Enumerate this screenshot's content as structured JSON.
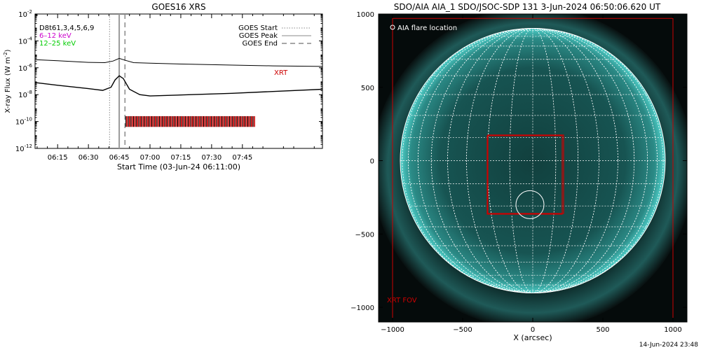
{
  "colors": {
    "black": "#000000",
    "xrt_red": "#cc0000",
    "magenta": "#cc00cc",
    "green": "#00cc00",
    "grey_line": "#9a9a9a",
    "disk_teal": "#1f5e5c",
    "corona_teal": "#3aa8a4"
  },
  "chart_data": [
    {
      "type": "line",
      "title": "GOES16 XRS",
      "xlabel": "Start Time (03-Jun-24 06:11:00)",
      "ylabel": "X-ray Flux (W m",
      "ylabel_sup": "-2",
      "ylabel_close": ")",
      "ylog": true,
      "ylim_exp": [
        -12,
        -2
      ],
      "xlim_min": [
        364,
        504
      ],
      "x_ticks": [
        {
          "label": "06:15",
          "m": 375
        },
        {
          "label": "06:30",
          "m": 390
        },
        {
          "label": "06:45",
          "m": 405
        },
        {
          "label": "07:00",
          "m": 420
        },
        {
          "label": "07:15",
          "m": 435
        },
        {
          "label": "07:30",
          "m": 450
        },
        {
          "label": "07:45",
          "m": 465
        }
      ],
      "y_ticks": [
        {
          "base": "10",
          "exp": "-2",
          "e": -2
        },
        {
          "base": "10",
          "exp": "-4",
          "e": -4
        },
        {
          "base": "10",
          "exp": "-6",
          "e": -6
        },
        {
          "base": "10",
          "exp": "-8",
          "e": -8
        },
        {
          "base": "10",
          "exp": "-10",
          "e": -10
        },
        {
          "base": "10",
          "exp": "-12",
          "e": -12
        }
      ],
      "legend_left": [
        "D8t61,3,4,5,6,9",
        "6–12 keV",
        "12–25 keV"
      ],
      "legend_right": [
        "GOES Start",
        "GOES Peak",
        "GOES End"
      ],
      "event_markers_min": {
        "start": 400.3,
        "peak": 405.0,
        "end": 407.8
      },
      "xrt_label": "XRT",
      "series": [
        {
          "color": "black",
          "points": [
            [
              364,
              -5.4
            ],
            [
              375,
              -5.48
            ],
            [
              390,
              -5.6
            ],
            [
              398,
              -5.62
            ],
            [
              402,
              -5.5
            ],
            [
              405,
              -5.3
            ],
            [
              408,
              -5.45
            ],
            [
              412,
              -5.62
            ],
            [
              420,
              -5.66
            ],
            [
              440,
              -5.74
            ],
            [
              460,
              -5.8
            ],
            [
              480,
              -5.86
            ],
            [
              504,
              -5.9
            ]
          ]
        },
        {
          "color": "black",
          "points": [
            [
              364,
              -7.1
            ],
            [
              375,
              -7.3
            ],
            [
              390,
              -7.55
            ],
            [
              397,
              -7.68
            ],
            [
              401,
              -7.45
            ],
            [
              403,
              -6.9
            ],
            [
              405,
              -6.6
            ],
            [
              407,
              -6.8
            ],
            [
              410,
              -7.6
            ],
            [
              415,
              -8.0
            ],
            [
              420,
              -8.1
            ],
            [
              440,
              -8.0
            ],
            [
              460,
              -7.9
            ],
            [
              504,
              -7.6
            ]
          ]
        }
      ],
      "xrt_obs_span_min": [
        408.2,
        471.0
      ]
    },
    {
      "type": "scatter",
      "title": "SDO/AIA AIA_1 SDO/JSOC-SDP 131  3-Jun-2024 06:50:06.620 UT",
      "xlabel": "X (arcsec)",
      "ylabel": "",
      "xlim": [
        -1100,
        1100
      ],
      "ylim": [
        -1100,
        1000
      ],
      "x_ticks": [
        {
          "label": "−1000",
          "v": -1000
        },
        {
          "label": "−500",
          "v": -500
        },
        {
          "label": "0",
          "v": 0
        },
        {
          "label": "500",
          "v": 500
        },
        {
          "label": "1000",
          "v": 1000
        }
      ],
      "y_ticks": [
        {
          "label": "1000",
          "v": 1000
        },
        {
          "label": "500",
          "v": 500
        },
        {
          "label": "0",
          "v": 0
        },
        {
          "label": "−500",
          "v": -500
        },
        {
          "label": "−1000",
          "v": -1000
        }
      ],
      "legend_text": "AIA flare location",
      "fov_label": "XRT FOV",
      "solar_radius_arcsec": 945,
      "flare_location_arcsec": [
        -20,
        -300
      ],
      "flare_circle_radius_arcsec": 100,
      "xrt_fov_arcsec": [
        -1000,
        -1100,
        1000,
        970
      ],
      "xrt_fields_arcsec": [
        [
          -325,
          -365,
          210,
          170
        ],
        [
          -320,
          -360,
          220,
          175
        ]
      ]
    }
  ],
  "footer_timestamp": "14-Jun-2024 23:48"
}
